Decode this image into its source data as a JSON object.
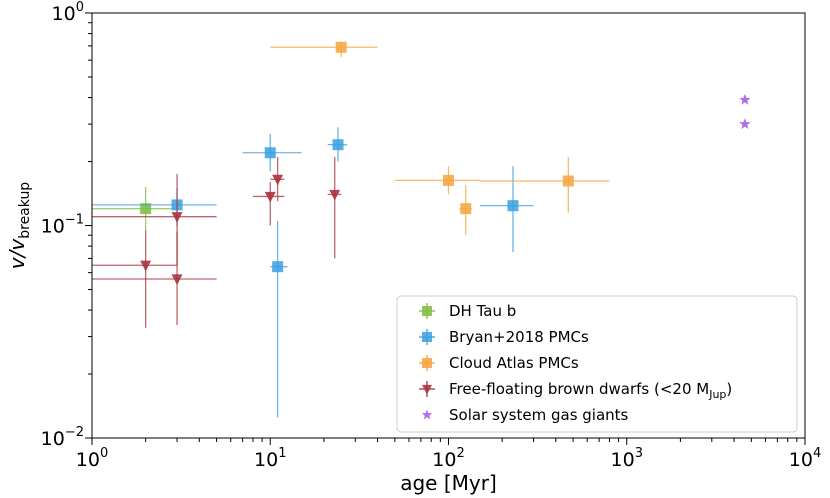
{
  "chart_data": {
    "type": "scatter",
    "xscale": "log",
    "yscale": "log",
    "xlim": [
      1,
      10000
    ],
    "ylim": [
      0.01,
      1
    ],
    "xlabel": "age [Myr]",
    "ylabel": "v/v_breakup",
    "ylabel_main": "v/v",
    "ylabel_sub": "breakup",
    "x_tick_labels": [
      {
        "value": 1,
        "base": "10",
        "exp": "0"
      },
      {
        "value": 10,
        "base": "10",
        "exp": "1"
      },
      {
        "value": 100,
        "base": "10",
        "exp": "2"
      },
      {
        "value": 1000,
        "base": "10",
        "exp": "3"
      },
      {
        "value": 10000,
        "base": "10",
        "exp": "4"
      }
    ],
    "y_tick_labels": [
      {
        "value": 0.01,
        "base": "10",
        "exp": "−2"
      },
      {
        "value": 0.1,
        "base": "10",
        "exp": "−1"
      },
      {
        "value": 1,
        "base": "10",
        "exp": "0"
      }
    ],
    "legend": {
      "position": "lower-right"
    },
    "series": [
      {
        "name": "DH Tau b",
        "label_main": "DH Tau b",
        "label_sub": "",
        "label_end": "",
        "color": "#7fbc41",
        "marker": "square",
        "points": [
          {
            "x": 2.0,
            "y": 0.12,
            "xerr": [
              1.0,
              3.0
            ],
            "yerr": [
              0.095,
              0.152
            ]
          }
        ]
      },
      {
        "name": "Bryan+2018 PMCs",
        "label_main": "Bryan+2018 PMCs",
        "label_sub": "",
        "label_end": "",
        "color": "#3a9fe0",
        "marker": "square",
        "points": [
          {
            "x": 3.0,
            "y": 0.125,
            "xerr": [
              1.0,
              5.0
            ],
            "yerr": [
              0.1,
              0.15
            ]
          },
          {
            "x": 10.0,
            "y": 0.22,
            "xerr": [
              7.0,
              15.0
            ],
            "yerr": [
              0.18,
              0.27
            ]
          },
          {
            "x": 11.0,
            "y": 0.064,
            "xerr": [
              10.0,
              12.5
            ],
            "yerr": [
              0.0125,
              0.105
            ]
          },
          {
            "x": 24.0,
            "y": 0.24,
            "xerr": [
              21.0,
              27.0
            ],
            "yerr": [
              0.2,
              0.29
            ]
          },
          {
            "x": 230.0,
            "y": 0.124,
            "xerr": [
              150.0,
              300.0
            ],
            "yerr": [
              0.075,
              0.19
            ]
          }
        ]
      },
      {
        "name": "Cloud Atlas PMCs",
        "label_main": "Cloud Atlas PMCs",
        "label_sub": "",
        "label_end": "",
        "color": "#f5a43d",
        "marker": "square",
        "points": [
          {
            "x": 25.0,
            "y": 0.69,
            "xerr": [
              10.0,
              40.0
            ],
            "yerr": [
              0.62,
              0.73
            ]
          },
          {
            "x": 100.0,
            "y": 0.163,
            "xerr": [
              50.0,
              150.0
            ],
            "yerr": [
              0.14,
              0.19
            ]
          },
          {
            "x": 125.0,
            "y": 0.12,
            "xerr": [
              115.0,
              135.0
            ],
            "yerr": [
              0.09,
              0.155
            ]
          },
          {
            "x": 470.0,
            "y": 0.162,
            "xerr": [
              150.0,
              800.0
            ],
            "yerr": [
              0.115,
              0.21
            ]
          }
        ]
      },
      {
        "name": "Free-floating brown dwarfs (<20 M_Jup)",
        "label_main": "Free-floating brown dwarfs (<20 M",
        "label_sub": "Jup",
        "label_end": ")",
        "color": "#a8343e",
        "marker": "triangle-down",
        "points": [
          {
            "x": 2.0,
            "y": 0.065,
            "xerr": [
              1.0,
              3.0
            ],
            "yerr": [
              0.033,
              0.095
            ]
          },
          {
            "x": 3.0,
            "y": 0.11,
            "xerr": [
              1.0,
              5.0
            ],
            "yerr": [
              0.065,
              0.175
            ]
          },
          {
            "x": 3.0,
            "y": 0.056,
            "xerr": [
              1.0,
              5.0
            ],
            "yerr": [
              0.034,
              0.093
            ]
          },
          {
            "x": 10.0,
            "y": 0.137,
            "xerr": [
              8.0,
              12.0
            ],
            "yerr": [
              0.1,
              0.16
            ]
          },
          {
            "x": 11.0,
            "y": 0.165,
            "xerr": [
              10.0,
              12.0
            ],
            "yerr": [
              0.13,
              0.21
            ]
          },
          {
            "x": 23.0,
            "y": 0.14,
            "xerr": [
              21.0,
              25.0
            ],
            "yerr": [
              0.07,
              0.21
            ]
          }
        ]
      },
      {
        "name": "Solar system gas giants",
        "label_main": "Solar system gas giants",
        "label_sub": "",
        "label_end": "",
        "color": "#b36ee8",
        "marker": "star",
        "points": [
          {
            "x": 4600.0,
            "y": 0.39
          },
          {
            "x": 4600.0,
            "y": 0.3
          }
        ]
      }
    ]
  }
}
